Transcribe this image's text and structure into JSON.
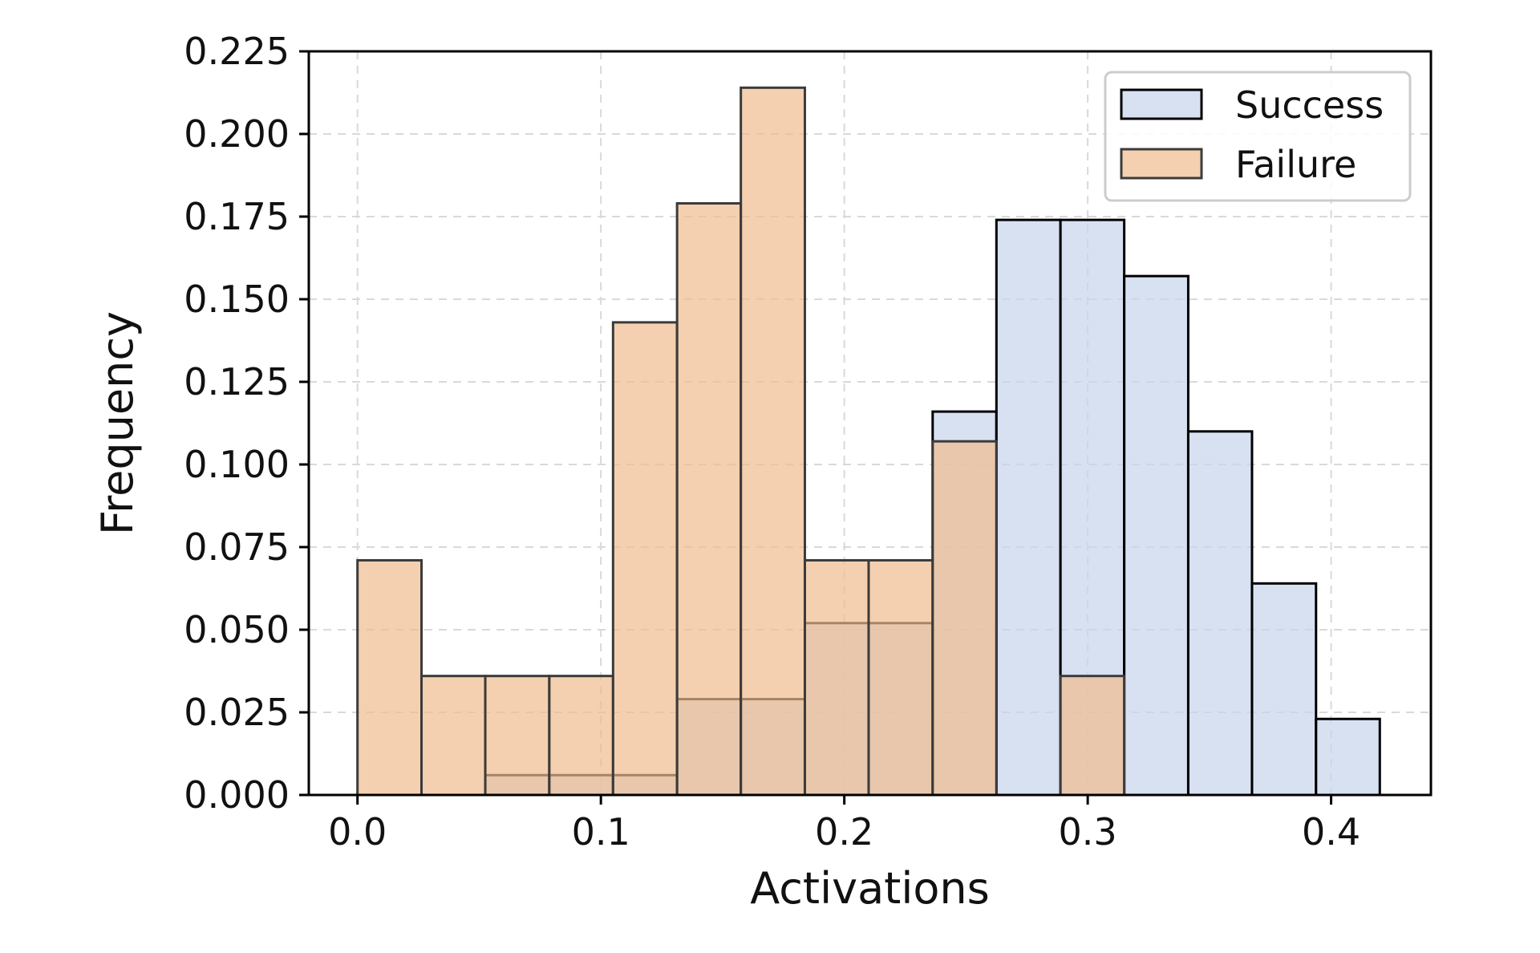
{
  "chart_data": {
    "type": "bar",
    "subtype": "overlapping-histogram",
    "title": "",
    "xlabel": "Activations",
    "ylabel": "Frequency",
    "xlim": [
      -0.02,
      0.441
    ],
    "ylim": [
      0,
      0.225
    ],
    "grid": true,
    "legend_position": "top-right",
    "x_ticks": [
      0.0,
      0.1,
      0.2,
      0.3,
      0.4
    ],
    "x_tick_labels": [
      "0.0",
      "0.1",
      "0.2",
      "0.3",
      "0.4"
    ],
    "y_ticks": [
      0,
      0.025,
      0.05,
      0.075,
      0.1,
      0.125,
      0.15,
      0.175,
      0.2,
      0.225
    ],
    "y_tick_labels": [
      "0.000",
      "0.025",
      "0.050",
      "0.075",
      "0.100",
      "0.125",
      "0.150",
      "0.175",
      "0.200",
      "0.225"
    ],
    "bin_edges": [
      0.0,
      0.0263,
      0.0525,
      0.0788,
      0.105,
      0.1313,
      0.1575,
      0.1838,
      0.21,
      0.2363,
      0.2625,
      0.2888,
      0.315,
      0.3413,
      0.3675,
      0.3938,
      0.42
    ],
    "series": [
      {
        "name": "Success",
        "color": "#c7d4ec",
        "edge_color": "#000000",
        "values": [
          0,
          0,
          0.006,
          0.006,
          0.006,
          0.029,
          0.029,
          0.052,
          0.052,
          0.116,
          0.174,
          0.174,
          0.157,
          0.11,
          0.064,
          0.023
        ]
      },
      {
        "name": "Failure",
        "color": "#efbc8f",
        "edge_color": "#3b3b3b",
        "values": [
          0.071,
          0.036,
          0.036,
          0.036,
          0.143,
          0.179,
          0.214,
          0.071,
          0.071,
          0.107,
          0,
          0.036,
          0,
          0,
          0,
          0
        ]
      }
    ]
  }
}
